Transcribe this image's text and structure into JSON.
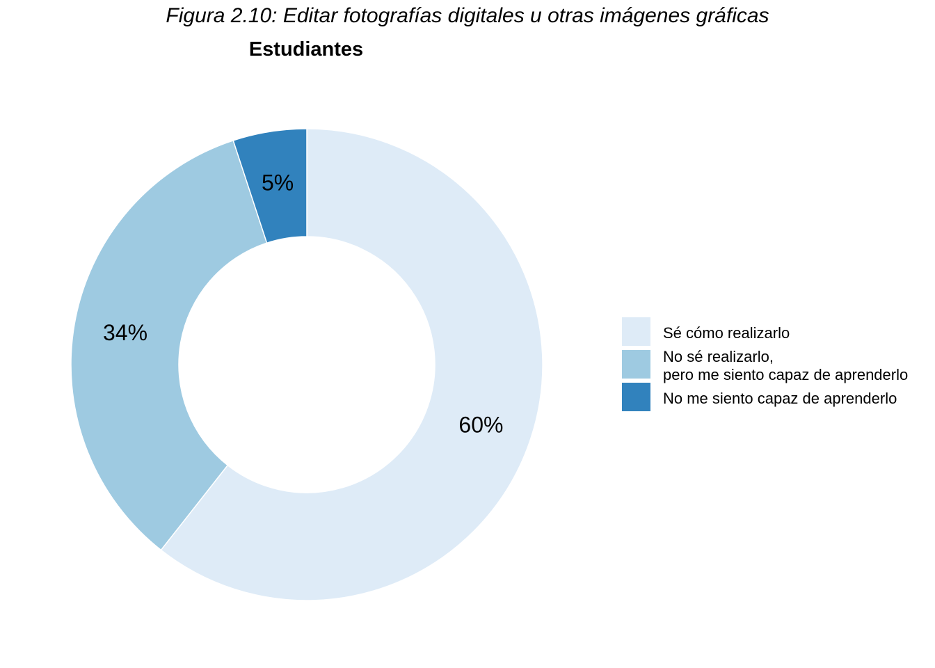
{
  "figure": {
    "title": "Figura 2.10: Editar fotografías digitales u otras imágenes gráficas",
    "subtitle": "Estudiantes"
  },
  "chart_data": {
    "type": "pie",
    "style": "donut",
    "title": "Estudiantes",
    "categories": [
      "Sé cómo realizarlo",
      "No sé realizarlo,\npero me siento capaz de aprenderlo",
      "No me siento capaz de aprenderlo"
    ],
    "values": [
      60,
      34,
      5
    ],
    "labels": [
      "60%",
      "34%",
      "5%"
    ],
    "colors": [
      "#deebf7",
      "#9ecae1",
      "#3182bd"
    ],
    "legend_position": "right"
  }
}
